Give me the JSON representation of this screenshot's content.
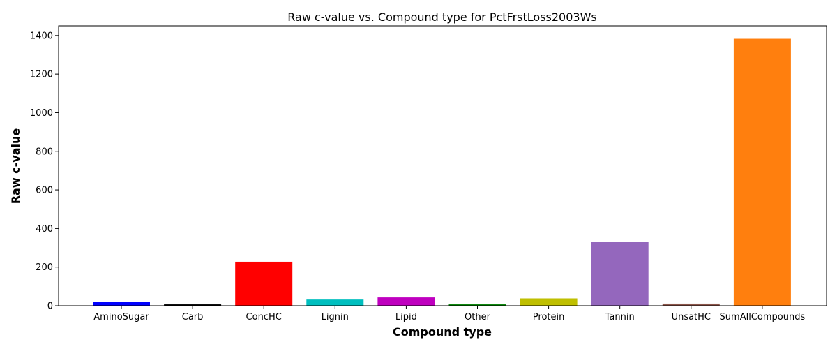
{
  "chart_data": {
    "type": "bar",
    "title": "Raw c-value vs. Compound type for PctFrstLoss2003Ws",
    "xlabel": "Compound type",
    "ylabel": "Raw c-value",
    "ylim": [
      0,
      1450
    ],
    "yticks": [
      0,
      200,
      400,
      600,
      800,
      1000,
      1200,
      1400
    ],
    "categories": [
      "AminoSugar",
      "Carb",
      "ConcHC",
      "Lignin",
      "Lipid",
      "Other",
      "Protein",
      "Tannin",
      "UnsatHC",
      "SumAllCompounds"
    ],
    "values": [
      20,
      7,
      228,
      32,
      43,
      7,
      38,
      330,
      11,
      1383
    ],
    "colors": [
      "#0000ff",
      "#000000",
      "#ff0000",
      "#00bfbf",
      "#bf00bf",
      "#008000",
      "#bfbf00",
      "#9467bd",
      "#8c564b",
      "#ff7f0e"
    ],
    "grid": false,
    "legend": "none"
  }
}
